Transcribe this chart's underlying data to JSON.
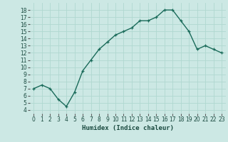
{
  "x": [
    0,
    1,
    2,
    3,
    4,
    5,
    6,
    7,
    8,
    9,
    10,
    11,
    12,
    13,
    14,
    15,
    16,
    17,
    18,
    19,
    20,
    21,
    22,
    23
  ],
  "y": [
    7,
    7.5,
    7,
    5.5,
    4.5,
    6.5,
    9.5,
    11,
    12.5,
    13.5,
    14.5,
    15,
    15.5,
    16.5,
    16.5,
    17,
    18,
    18,
    16.5,
    15,
    12.5,
    13,
    12.5,
    12
  ],
  "line_color": "#1a6b5a",
  "marker": "+",
  "bg_color": "#cce8e4",
  "grid_color": "#b0d8d0",
  "xlabel": "Humidex (Indice chaleur)",
  "ylim": [
    3.5,
    19
  ],
  "xlim": [
    -0.5,
    23.5
  ],
  "yticks": [
    4,
    5,
    6,
    7,
    8,
    9,
    10,
    11,
    12,
    13,
    14,
    15,
    16,
    17,
    18
  ],
  "xticks": [
    0,
    1,
    2,
    3,
    4,
    5,
    6,
    7,
    8,
    9,
    10,
    11,
    12,
    13,
    14,
    15,
    16,
    17,
    18,
    19,
    20,
    21,
    22,
    23
  ],
  "tick_fontsize": 5.5,
  "label_fontsize": 6.5,
  "line_width": 1.0,
  "marker_size": 3.5,
  "marker_edge_width": 0.9
}
